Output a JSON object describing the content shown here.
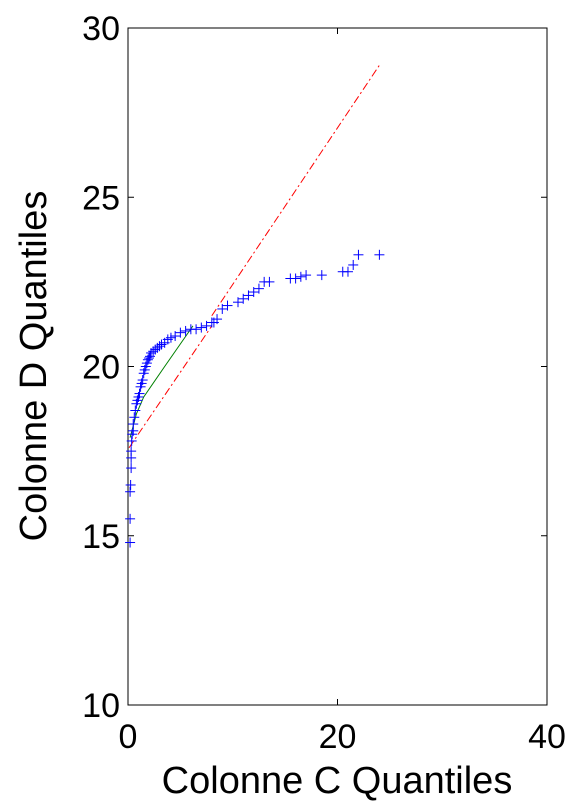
{
  "chart_data": {
    "type": "scatter",
    "title": "",
    "xlabel": "Colonne C Quantiles",
    "ylabel": "Colonne D Quantiles",
    "xlim": [
      0,
      40
    ],
    "ylim": [
      10,
      30
    ],
    "xticks": [
      0,
      20,
      40
    ],
    "yticks": [
      10,
      15,
      20,
      25,
      30
    ],
    "grid": false,
    "legend": "none",
    "series": [
      {
        "kind": "points",
        "marker": "+",
        "color": "#0000ff",
        "x": [
          0.2,
          0.2,
          0.2,
          0.25,
          0.3,
          0.3,
          0.3,
          0.35,
          0.4,
          0.5,
          0.5,
          0.6,
          0.7,
          0.8,
          0.9,
          1.0,
          1.1,
          1.2,
          1.3,
          1.4,
          1.5,
          1.6,
          1.7,
          1.8,
          1.9,
          2.0,
          2.1,
          2.2,
          2.4,
          2.6,
          2.8,
          3.0,
          3.2,
          3.5,
          3.8,
          4.1,
          4.5,
          5.0,
          5.5,
          6.0,
          6.5,
          7.0,
          7.5,
          8.0,
          8.2,
          8.5,
          9.0,
          9.5,
          10.5,
          11.0,
          11.5,
          12.0,
          12.5,
          13.0,
          13.5,
          15.5,
          16.0,
          16.5,
          17.0,
          18.5,
          20.5,
          21.0,
          21.5,
          22.0,
          24.0
        ],
        "y": [
          14.8,
          15.5,
          16.3,
          16.5,
          17.0,
          17.3,
          17.5,
          17.8,
          18.0,
          18.1,
          18.3,
          18.5,
          18.7,
          18.9,
          19.0,
          19.1,
          19.2,
          19.4,
          19.5,
          19.6,
          19.8,
          19.9,
          20.0,
          20.1,
          20.2,
          20.25,
          20.3,
          20.4,
          20.45,
          20.5,
          20.55,
          20.6,
          20.65,
          20.7,
          20.8,
          20.85,
          20.9,
          21.0,
          21.05,
          21.1,
          21.1,
          21.15,
          21.2,
          21.3,
          21.3,
          21.4,
          21.7,
          21.8,
          21.9,
          22.0,
          22.1,
          22.2,
          22.3,
          22.5,
          22.5,
          22.6,
          22.6,
          22.65,
          22.7,
          22.7,
          22.8,
          22.8,
          23.0,
          23.3,
          23.3
        ]
      },
      {
        "kind": "line",
        "style": "solid",
        "color": "#008000",
        "x": [
          0.2,
          0.8,
          1.5,
          3.5,
          6.2
        ],
        "y": [
          17.9,
          18.6,
          19.1,
          20.0,
          21.2
        ]
      },
      {
        "kind": "line",
        "style": "dash-dot",
        "color": "#ff0000",
        "x": [
          0.1,
          8.0
        ],
        "y": [
          17.6,
          21.2
        ]
      },
      {
        "kind": "line",
        "style": "dash-dot",
        "color": "#ff0000",
        "x": [
          8.0,
          24.0
        ],
        "y": [
          21.5,
          28.9
        ]
      }
    ]
  }
}
